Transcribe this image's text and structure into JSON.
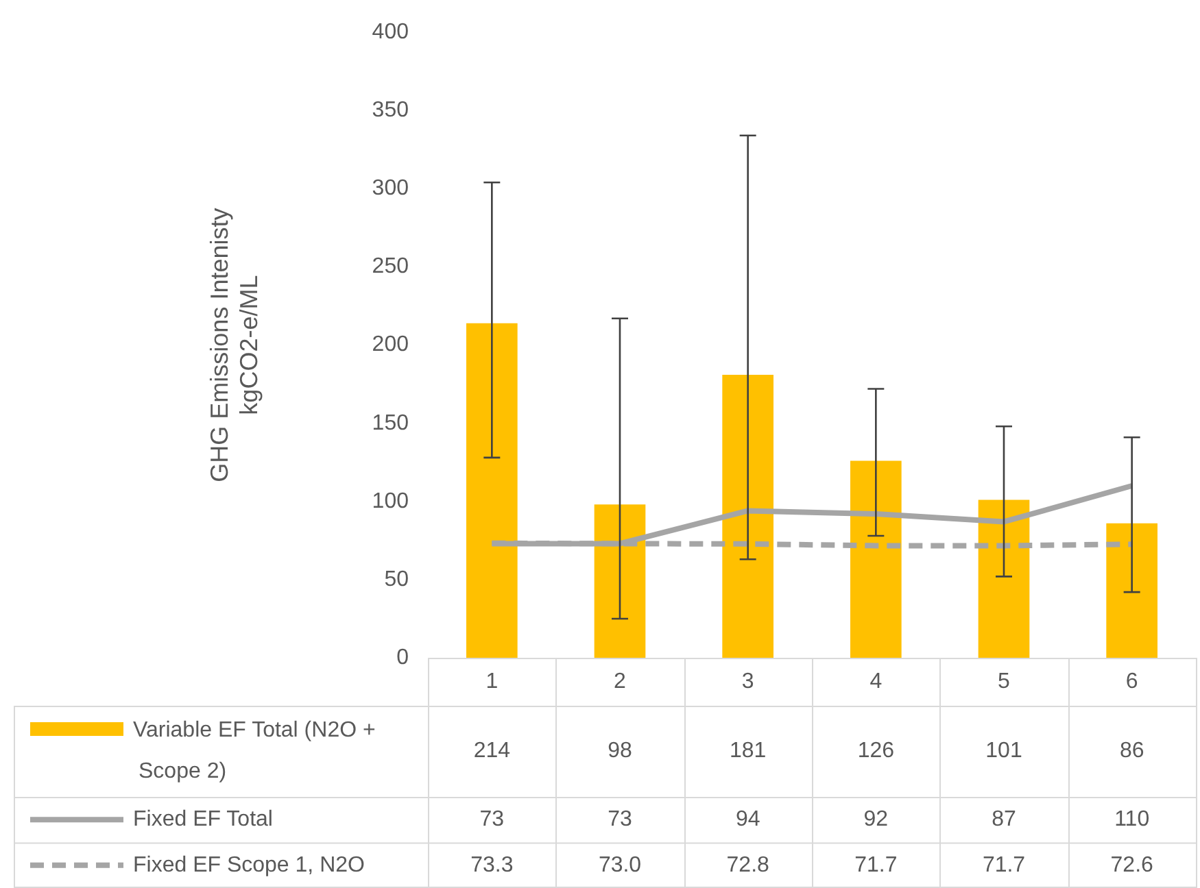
{
  "chart_data": {
    "type": "bar",
    "ylabel": "GHG Emissions Intenisty kgCO2-e/ML",
    "categories": [
      "1",
      "2",
      "3",
      "4",
      "5",
      "6"
    ],
    "ylim": [
      0,
      400
    ],
    "yticks": [
      0,
      50,
      100,
      150,
      200,
      250,
      300,
      350,
      400
    ],
    "legend": "bottom",
    "marker": "none",
    "series": [
      {
        "name": "Variable EF Total (N2O + Scope 2)",
        "color": "#ffc000",
        "values": [
          214,
          98,
          181,
          126,
          101,
          86
        ],
        "value_labels": [
          "214",
          "98",
          "181",
          "126",
          "101",
          "86"
        ],
        "errors": [
          [
            128,
            304
          ],
          [
            25,
            217
          ],
          [
            63,
            334
          ],
          [
            78,
            172
          ],
          [
            52,
            148
          ],
          [
            42,
            141
          ]
        ]
      },
      {
        "name": "Fixed EF Total",
        "type": "line",
        "line_style": "solid",
        "color": "#a5a5a5",
        "values": [
          73,
          73,
          94,
          92,
          87,
          110
        ],
        "value_labels": [
          "73",
          "73",
          "94",
          "92",
          "87",
          "110"
        ]
      },
      {
        "name": "Fixed EF Scope 1, N2O",
        "type": "line",
        "line_style": "dashed",
        "color": "#a5a5a5",
        "values": [
          73.3,
          73.0,
          72.8,
          71.7,
          71.7,
          72.6
        ],
        "value_labels": [
          "73.3",
          "73.0",
          "72.8",
          "71.7",
          "71.7",
          "72.6"
        ]
      }
    ]
  }
}
